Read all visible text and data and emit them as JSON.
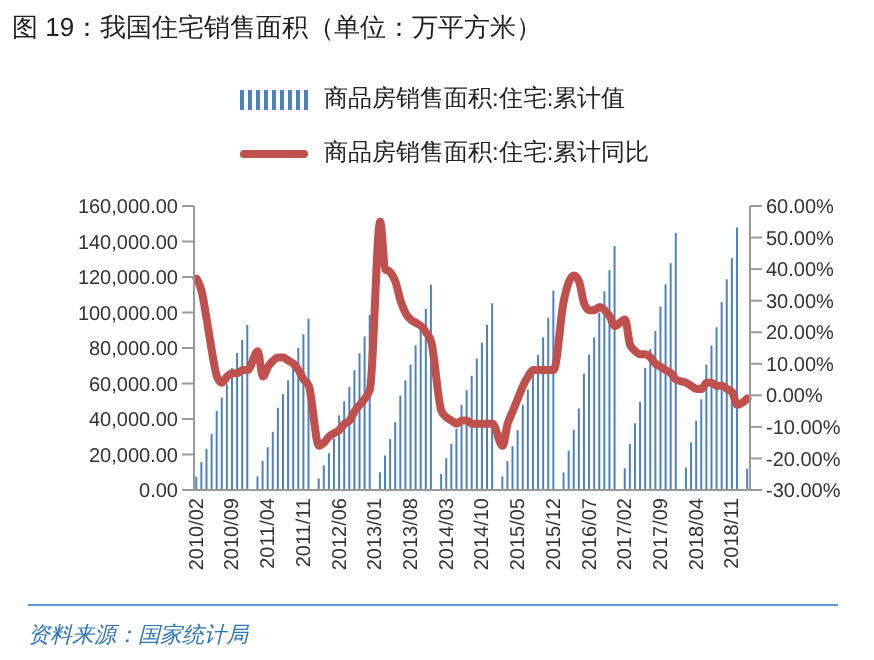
{
  "chart_data": {
    "type": "bar",
    "title": "图 19：我国住宅销售面积（单位：万平方米）",
    "categories": [
      "2010/02",
      null,
      null,
      null,
      null,
      null,
      null,
      "2010/09",
      null,
      null,
      null,
      null,
      null,
      null,
      "2011/04",
      null,
      null,
      null,
      null,
      null,
      null,
      "2011/11",
      null,
      null,
      null,
      null,
      null,
      null,
      "2012/06",
      null,
      null,
      null,
      null,
      null,
      null,
      "2013/01",
      null,
      null,
      null,
      null,
      null,
      null,
      "2013/08",
      null,
      null,
      null,
      null,
      null,
      null,
      "2014/03",
      null,
      null,
      null,
      null,
      null,
      null,
      "2014/10",
      null,
      null,
      null,
      null,
      null,
      null,
      "2015/05",
      null,
      null,
      null,
      null,
      null,
      null,
      "2015/12",
      null,
      null,
      null,
      null,
      null,
      null,
      "2016/07",
      null,
      null,
      null,
      null,
      null,
      null,
      "2017/02",
      null,
      null,
      null,
      null,
      null,
      null,
      "2017/09",
      null,
      null,
      null,
      null,
      null,
      null,
      "2018/04",
      null,
      null,
      null,
      null,
      null,
      null,
      "2018/11",
      null,
      null,
      null
    ],
    "series": [
      {
        "name": "商品房销售面积:住宅:累计值",
        "color": "#4f81bd",
        "values": [
          7400,
          15800,
          23300,
          31600,
          44600,
          52100,
          59500,
          68800,
          77200,
          84600,
          93000,
          null,
          7700,
          16400,
          24100,
          32800,
          46300,
          54000,
          61800,
          71400,
          80100,
          87800,
          96500,
          null,
          6500,
          13900,
          20700,
          29000,
          42000,
          50000,
          58000,
          67500,
          77000,
          86500,
          98500,
          null,
          10000,
          19500,
          28700,
          38200,
          53300,
          61800,
          70600,
          81500,
          91000,
          102000,
          115700,
          null,
          9000,
          17900,
          25900,
          34500,
          47900,
          56200,
          64300,
          74000,
          83000,
          93000,
          105200,
          null,
          7600,
          16300,
          24600,
          33700,
          48100,
          56600,
          65100,
          76100,
          86000,
          97100,
          112400,
          null,
          9900,
          22200,
          33900,
          45900,
          65600,
          76200,
          86000,
          99900,
          112000,
          123800,
          137500,
          null,
          12300,
          25900,
          37600,
          49700,
          68800,
          79400,
          89600,
          103400,
          115900,
          127800,
          144800,
          null,
          12600,
          26800,
          39000,
          51100,
          70700,
          81400,
          91700,
          105900,
          118700,
          130600,
          147900,
          null,
          12000
        ]
      },
      {
        "name": "商品房销售面积:住宅:累计同比",
        "type": "line",
        "axis": "y2",
        "color": "#c0504d",
        "values": [
          37,
          33,
          24,
          14,
          6,
          4,
          6,
          7,
          7,
          8,
          8,
          null,
          14,
          6,
          9,
          11,
          12,
          12,
          11,
          10,
          8,
          5,
          3,
          null,
          -16,
          -15,
          -13,
          -12,
          -11,
          -9,
          -8,
          -5,
          -3,
          -1,
          2,
          null,
          55,
          40,
          39,
          36,
          30,
          26,
          24,
          23,
          22,
          20,
          17,
          null,
          -5,
          -7,
          -8,
          -9,
          -8,
          -8,
          -9,
          -9,
          -9,
          -9,
          -9,
          null,
          -16,
          -9,
          -5,
          -1,
          3,
          6,
          8,
          8,
          8,
          8,
          8,
          null,
          30,
          36,
          38,
          36,
          29,
          27,
          27,
          28,
          27,
          25,
          22,
          null,
          24,
          16,
          14,
          13,
          13,
          12,
          10,
          9,
          8,
          7,
          5,
          null,
          4,
          3,
          2,
          2,
          4,
          4,
          3,
          3,
          2,
          1,
          -3,
          null,
          -1
        ]
      }
    ],
    "ylim": [
      0,
      160000
    ],
    "yticks": [
      {
        "value": 0,
        "label": "0.00"
      },
      {
        "value": 20000,
        "label": "20,000.00"
      },
      {
        "value": 40000,
        "label": "40,000.00"
      },
      {
        "value": 60000,
        "label": "60,000.00"
      },
      {
        "value": 80000,
        "label": "80,000.00"
      },
      {
        "value": 100000,
        "label": "100,000.00"
      },
      {
        "value": 120000,
        "label": "120,000.00"
      },
      {
        "value": 140000,
        "label": "140,000.00"
      },
      {
        "value": 160000,
        "label": "160,000.00"
      }
    ],
    "y2lim": [
      -30,
      60
    ],
    "y2ticks": [
      {
        "value": -30,
        "label": "-30.00%"
      },
      {
        "value": -20,
        "label": "-20.00%"
      },
      {
        "value": -10,
        "label": "-10.00%"
      },
      {
        "value": 0,
        "label": "0.00%"
      },
      {
        "value": 10,
        "label": "10.00%"
      },
      {
        "value": 20,
        "label": "20.00%"
      },
      {
        "value": 30,
        "label": "30.00%"
      },
      {
        "value": 40,
        "label": "40.00%"
      },
      {
        "value": 50,
        "label": "50.00%"
      },
      {
        "value": 60,
        "label": "60.00%"
      }
    ],
    "legend": "top",
    "marker": "none",
    "line_style": "solid",
    "annotations": [
      "资料来源：国家统计局"
    ]
  }
}
